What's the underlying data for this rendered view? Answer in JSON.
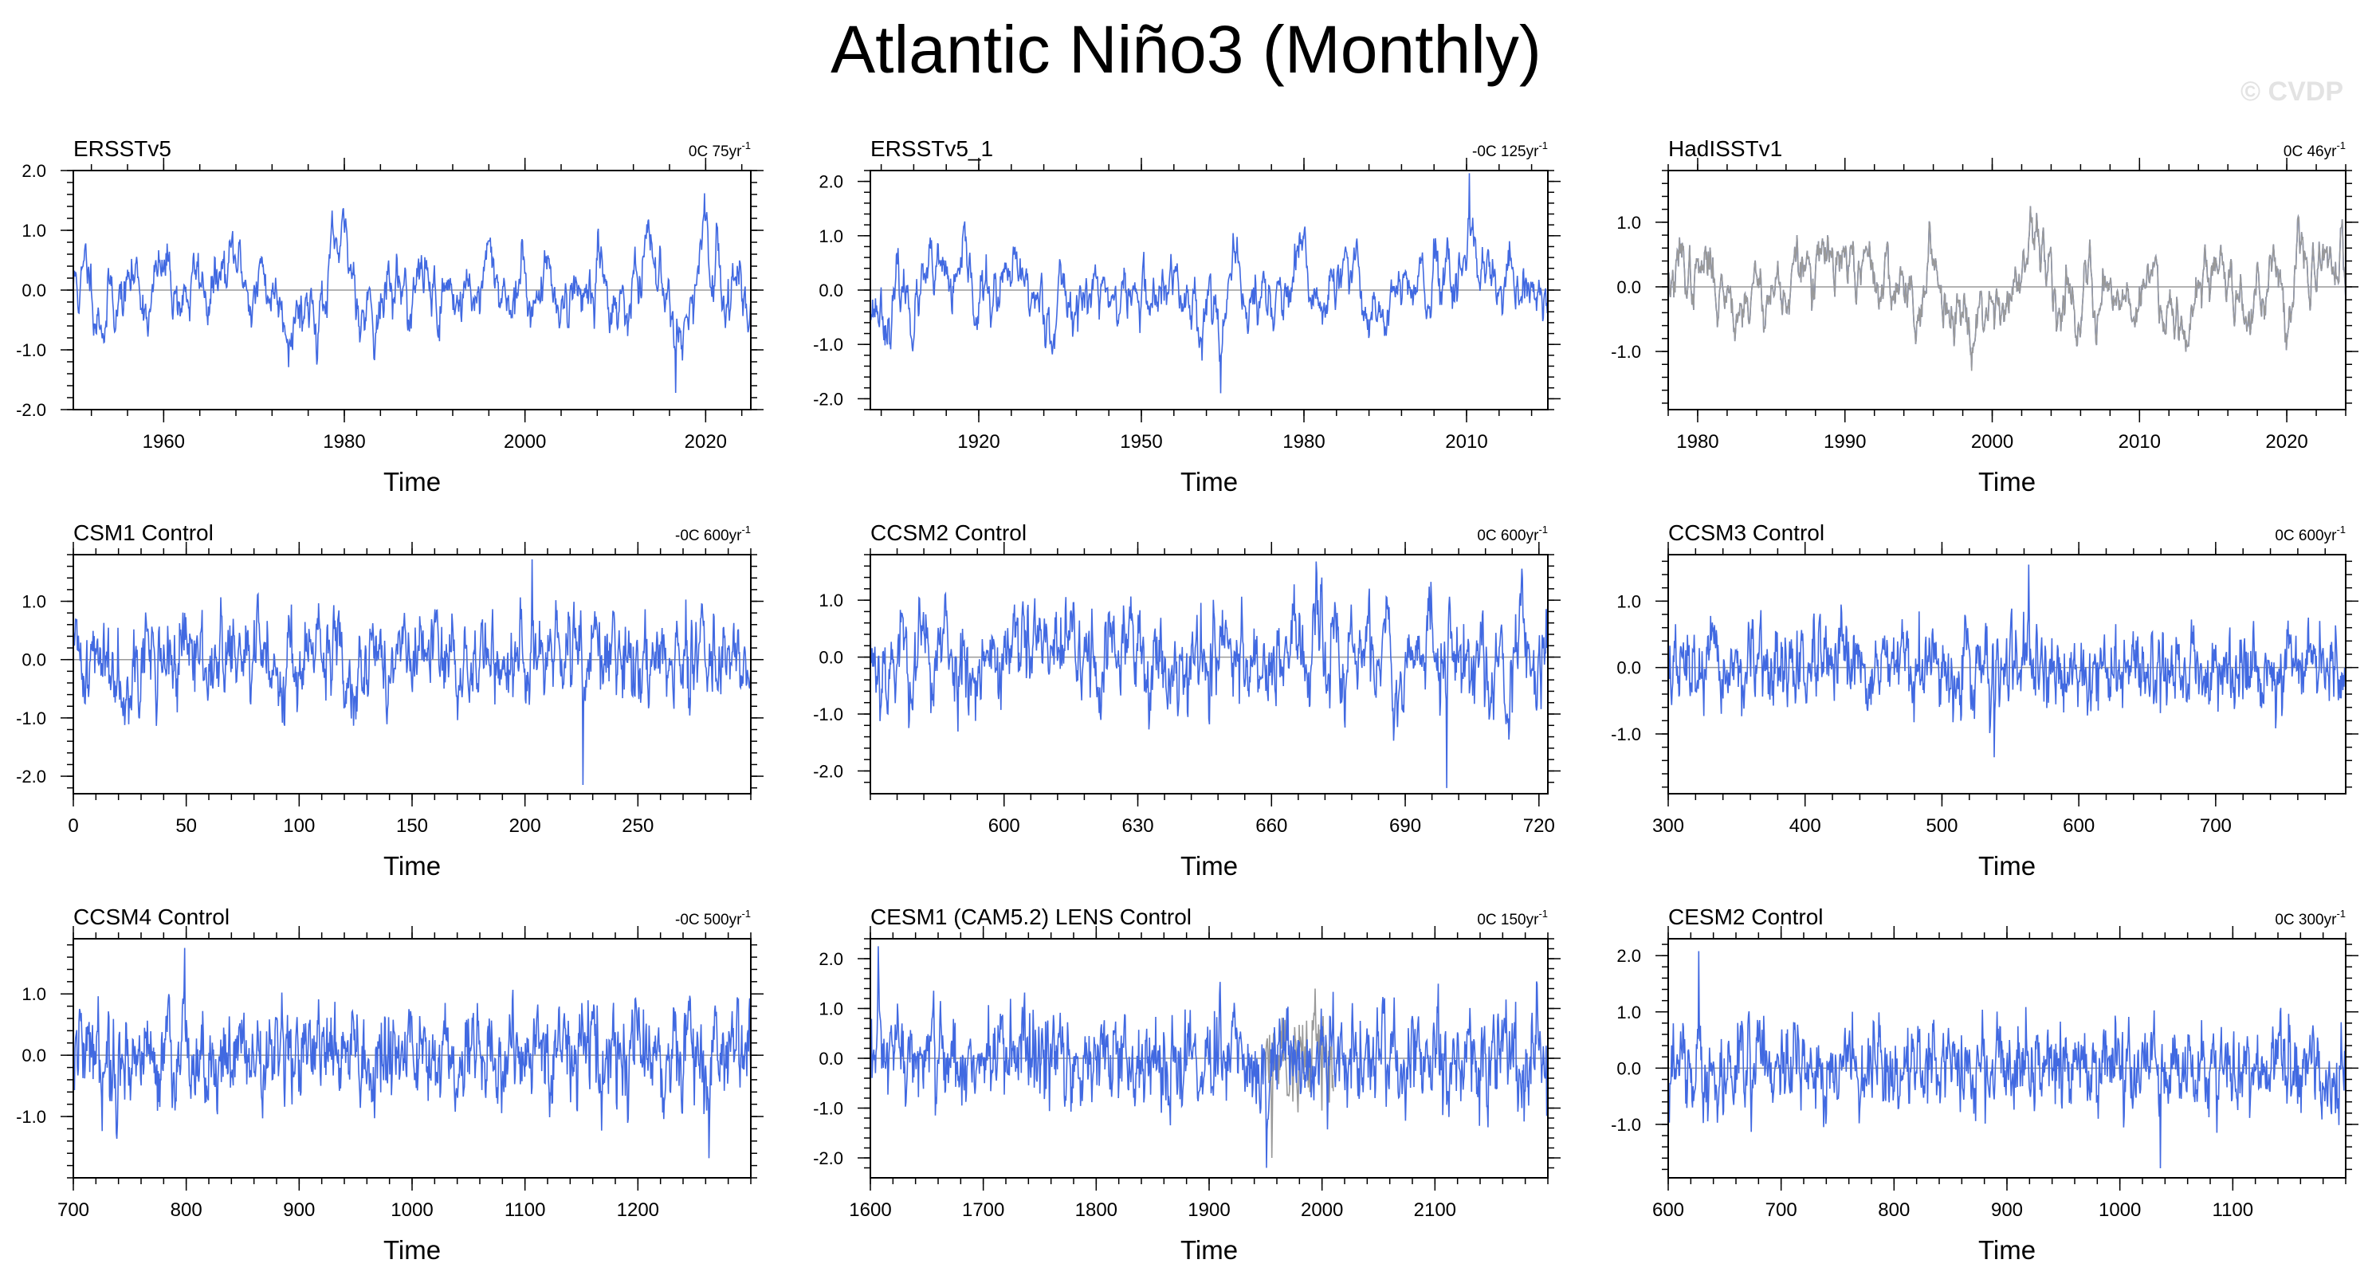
{
  "title": "Atlantic Niño3 (Monthly)",
  "watermark": "© CVDP",
  "colors": {
    "series": "#4169e1",
    "secondary": "#999999",
    "zero_line": "#999999",
    "frame": "#000000"
  },
  "chart_data": [
    {
      "type": "line",
      "title": "ERSSTv5",
      "trend_label": "0C 75yr",
      "trend_sup": "-1",
      "xlabel": "Time",
      "xlim": [
        1950,
        2025
      ],
      "ylim": [
        -2.0,
        2.0
      ],
      "xticks": [
        1960,
        1980,
        2000,
        2020
      ],
      "xticklabels": [
        "1960",
        "1980",
        "2000",
        "2020"
      ],
      "yticks": [
        -2.0,
        -1.0,
        0.0,
        1.0,
        2.0
      ],
      "yticklabels": [
        "-2.0",
        "-1.0",
        "0.0",
        "1.0",
        "2.0"
      ],
      "series": [
        {
          "name": "ERSSTv5",
          "std": 0.45,
          "min": -1.72,
          "max": 1.62,
          "seed": 11,
          "persistence": 0.93
        }
      ]
    },
    {
      "type": "line",
      "title": "ERSSTv5_1",
      "trend_label": "-0C 125yr",
      "trend_sup": "-1",
      "xlabel": "Time",
      "xlim": [
        1900,
        2025
      ],
      "ylim": [
        -2.2,
        2.2
      ],
      "xticks": [
        1920,
        1950,
        1980,
        2010
      ],
      "xticklabels": [
        "1920",
        "1950",
        "1980",
        "2010"
      ],
      "yticks": [
        -2.0,
        -1.0,
        0.0,
        1.0,
        2.0
      ],
      "yticklabels": [
        "-2.0",
        "-1.0",
        "0.0",
        "1.0",
        "2.0"
      ],
      "series": [
        {
          "name": "ERSSTv5_1",
          "std": 0.45,
          "min": -1.9,
          "max": 2.15,
          "seed": 23,
          "persistence": 0.9
        }
      ]
    },
    {
      "type": "line",
      "title": "HadISSTv1",
      "trend_label": "0C 46yr",
      "trend_sup": "-1",
      "xlabel": "Time",
      "xlim": [
        1978,
        2024
      ],
      "ylim": [
        -1.9,
        1.8
      ],
      "xticks": [
        1980,
        1990,
        2000,
        2010,
        2020
      ],
      "xticklabels": [
        "1980",
        "1990",
        "2000",
        "2010",
        "2020"
      ],
      "yticks": [
        -1.0,
        0.0,
        1.0
      ],
      "yticklabels": [
        "-1.0",
        "0.0",
        "1.0"
      ],
      "series": [
        {
          "name": "HadISSTv1",
          "std": 0.42,
          "min": -1.25,
          "max": 1.25,
          "seed": 37,
          "persistence": 0.93
        },
        {
          "name": "secondary",
          "std": 0.42,
          "min": -1.3,
          "max": 1.25,
          "seed": 37,
          "persistence": 0.93,
          "color": "secondary"
        }
      ]
    },
    {
      "type": "line",
      "title": "CSM1 Control",
      "trend_label": "-0C 600yr",
      "trend_sup": "-1",
      "xlabel": "Time",
      "xlim": [
        0,
        300
      ],
      "ylim": [
        -2.3,
        1.8
      ],
      "xticks": [
        0,
        50,
        100,
        150,
        200,
        250
      ],
      "xticklabels": [
        "0",
        "50",
        "100",
        "150",
        "200",
        "250"
      ],
      "yticks": [
        -2.0,
        -1.0,
        0.0,
        1.0
      ],
      "yticklabels": [
        "-2.0",
        "-1.0",
        "0.0",
        "1.0"
      ],
      "series": [
        {
          "name": "CSM1 Control",
          "std": 0.42,
          "min": -2.15,
          "max": 1.72,
          "seed": 41,
          "persistence": 0.7
        }
      ]
    },
    {
      "type": "line",
      "title": "CCSM2 Control",
      "trend_label": "0C 600yr",
      "trend_sup": "-1",
      "xlabel": "Time",
      "xlim": [
        570,
        722
      ],
      "ylim": [
        -2.4,
        1.8
      ],
      "xticks": [
        600,
        630,
        660,
        690,
        720
      ],
      "xticklabels": [
        "600",
        "630",
        "660",
        "690",
        "720"
      ],
      "yticks": [
        -2.0,
        -1.0,
        0.0,
        1.0
      ],
      "yticklabels": [
        "-2.0",
        "-1.0",
        "0.0",
        "1.0"
      ],
      "series": [
        {
          "name": "CCSM2 Control",
          "std": 0.5,
          "min": -2.3,
          "max": 1.68,
          "seed": 53,
          "persistence": 0.75
        }
      ]
    },
    {
      "type": "line",
      "title": "CCSM3 Control",
      "trend_label": "0C 600yr",
      "trend_sup": "-1",
      "xlabel": "Time",
      "xlim": [
        300,
        795
      ],
      "ylim": [
        -1.9,
        1.7
      ],
      "xticks": [
        300,
        400,
        500,
        600,
        700
      ],
      "xticklabels": [
        "300",
        "400",
        "500",
        "600",
        "700"
      ],
      "yticks": [
        -1.0,
        0.0,
        1.0
      ],
      "yticklabels": [
        "-1.0",
        "0.0",
        "1.0"
      ],
      "series": [
        {
          "name": "CCSM3 Control",
          "std": 0.32,
          "min": -1.35,
          "max": 1.55,
          "seed": 67,
          "persistence": 0.55
        }
      ]
    },
    {
      "type": "line",
      "title": "CCSM4 Control",
      "trend_label": "-0C 500yr",
      "trend_sup": "-1",
      "xlabel": "Time",
      "xlim": [
        700,
        1300
      ],
      "ylim": [
        -2.0,
        1.9
      ],
      "xticks": [
        700,
        800,
        900,
        1000,
        1100,
        1200
      ],
      "xticklabels": [
        "700",
        "800",
        "900",
        "1000",
        "1100",
        "1200"
      ],
      "yticks": [
        -1.0,
        0.0,
        1.0
      ],
      "yticklabels": [
        "-1.0",
        "0.0",
        "1.0"
      ],
      "series": [
        {
          "name": "CCSM4 Control",
          "std": 0.42,
          "min": -1.68,
          "max": 1.75,
          "seed": 79,
          "persistence": 0.6
        }
      ]
    },
    {
      "type": "line",
      "title": "CESM1 (CAM5.2) LENS Control",
      "trend_label": "0C 150yr",
      "trend_sup": "-1",
      "xlabel": "Time",
      "xlim": [
        1600,
        2200
      ],
      "ylim": [
        -2.4,
        2.4
      ],
      "xticks": [
        1600,
        1700,
        1800,
        1900,
        2000,
        2100
      ],
      "xticklabels": [
        "1600",
        "1700",
        "1800",
        "1900",
        "2000",
        "2100"
      ],
      "yticks": [
        -2.0,
        -1.0,
        0.0,
        1.0,
        2.0
      ],
      "yticklabels": [
        "-2.0",
        "-1.0",
        "0.0",
        "1.0",
        "2.0"
      ],
      "series": [
        {
          "name": "secondary",
          "std": 0.5,
          "min": -2.0,
          "max": 1.4,
          "seed": 89,
          "persistence": 0.55,
          "range": [
            1950,
            2010
          ],
          "color": "secondary"
        },
        {
          "name": "CESM1 (CAM5.2) LENS Control",
          "std": 0.5,
          "min": -2.2,
          "max": 2.25,
          "seed": 97,
          "persistence": 0.55
        }
      ]
    },
    {
      "type": "line",
      "title": "CESM2 Control",
      "trend_label": "0C 300yr",
      "trend_sup": "-1",
      "xlabel": "Time",
      "xlim": [
        600,
        1200
      ],
      "ylim": [
        -1.95,
        2.3
      ],
      "xticks": [
        600,
        700,
        800,
        900,
        1000,
        1100
      ],
      "xticklabels": [
        "600",
        "700",
        "800",
        "900",
        "1000",
        "1100"
      ],
      "yticks": [
        -1.0,
        0.0,
        1.0,
        2.0
      ],
      "yticklabels": [
        "-1.0",
        "0.0",
        "1.0",
        "2.0"
      ],
      "series": [
        {
          "name": "CESM2 Control",
          "std": 0.4,
          "min": -1.78,
          "max": 2.08,
          "seed": 103,
          "persistence": 0.55
        }
      ]
    }
  ]
}
